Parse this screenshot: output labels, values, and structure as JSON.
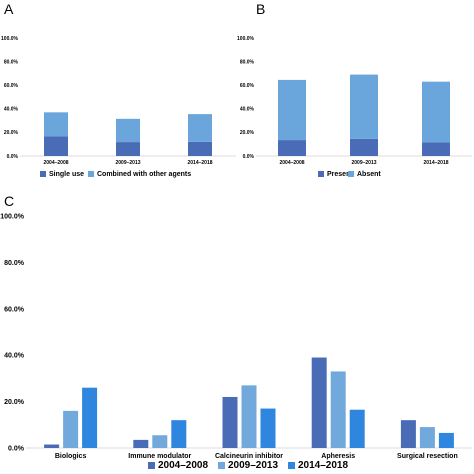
{
  "chart_data": [
    {
      "panel": "A",
      "type": "bar",
      "stacked": true,
      "categories": [
        "2004–2008",
        "2009–2013",
        "2014–2018"
      ],
      "series": [
        {
          "name": "Single use",
          "color": "#4a6cb7",
          "values": [
            16.5,
            11.8,
            12.0
          ]
        },
        {
          "name": "Combined with other agents",
          "color": "#6aa6dc",
          "values": [
            20.5,
            19.7,
            23.5
          ]
        }
      ],
      "yticks": [
        "0.0%",
        "20.0%",
        "40.0%",
        "60.0%",
        "80.0%",
        "100.0%"
      ],
      "ylim": [
        0,
        100
      ],
      "grid": false,
      "legend": "bottom"
    },
    {
      "panel": "B",
      "type": "bar",
      "stacked": true,
      "categories": [
        "2004–2008",
        "2009–2013",
        "2014–2018"
      ],
      "series": [
        {
          "name": "Present",
          "color": "#4a6cb7",
          "values": [
            13.5,
            14.5,
            11.5
          ]
        },
        {
          "name": "Absent",
          "color": "#6aa6dc",
          "values": [
            51.0,
            54.5,
            51.5
          ]
        }
      ],
      "yticks": [
        "0.0%",
        "20.0%",
        "40.0%",
        "60.0%",
        "80.0%",
        "100.0%"
      ],
      "ylim": [
        0,
        100
      ],
      "grid": false,
      "legend": "bottom"
    },
    {
      "panel": "C",
      "type": "bar",
      "stacked": false,
      "categories": [
        "Biologics",
        "Immune modulator",
        "Calcineurin inhibitor",
        "Apheresis",
        "Surgical resection"
      ],
      "series": [
        {
          "name": "2004–2008",
          "color": "#4a6cb7",
          "values": [
            1.5,
            3.5,
            22.0,
            39.0,
            12.0
          ]
        },
        {
          "name": "2009–2013",
          "color": "#72a9dc",
          "values": [
            16.0,
            5.5,
            27.0,
            33.0,
            9.0
          ]
        },
        {
          "name": "2014–2018",
          "color": "#2e86de",
          "values": [
            26.0,
            12.0,
            17.0,
            16.5,
            6.5
          ]
        }
      ],
      "yticks": [
        "0.0%",
        "20.0%",
        "40.0%",
        "60.0%",
        "80.0%",
        "100.0%"
      ],
      "ylim": [
        0,
        100
      ],
      "grid": false,
      "legend": "bottom"
    }
  ]
}
